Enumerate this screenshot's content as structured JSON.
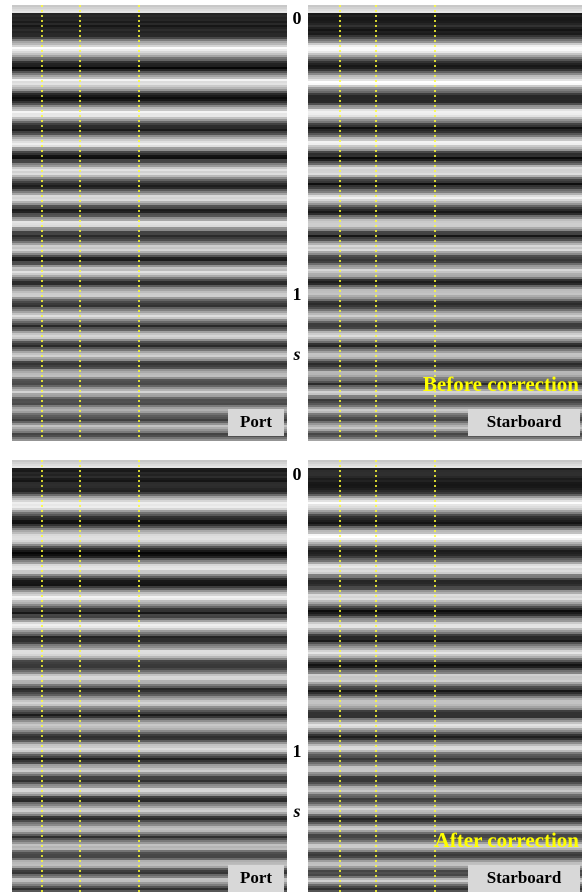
{
  "panels": [
    {
      "caption": "Before correction",
      "left_label": "Port",
      "right_label": "Starboard",
      "time_axis": {
        "ticks": [
          "0",
          "1"
        ],
        "unit": "s"
      }
    },
    {
      "caption": "After correction",
      "left_label": "Port",
      "right_label": "Starboard",
      "time_axis": {
        "ticks": [
          "0",
          "1"
        ],
        "unit": "s"
      }
    }
  ]
}
